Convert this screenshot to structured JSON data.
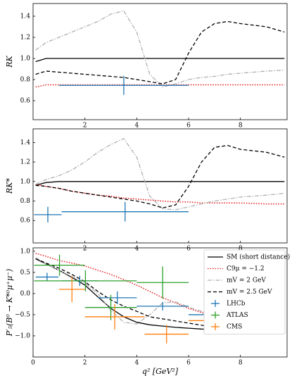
{
  "chart_data": [
    {
      "type": "line",
      "ylabel": "RK",
      "x": [
        0.1,
        0.5,
        1,
        1.5,
        2,
        2.5,
        3,
        3.5,
        4,
        4.5,
        5,
        5.5,
        6,
        6.5,
        7,
        7.5,
        8,
        9,
        9.7
      ],
      "xlim": [
        0,
        9.8
      ],
      "xticks": [
        2,
        4,
        6,
        8
      ],
      "ylim": [
        0.42,
        1.52
      ],
      "yticks": [
        0.6,
        0.8,
        {
          "value": 1,
          "label": "1.0"
        },
        1.2,
        1.4
      ],
      "series": [
        {
          "color": "#000000",
          "linestyle": "solid",
          "values": [
            0.97,
            1,
            1,
            1,
            1,
            1,
            1,
            1,
            1,
            1,
            1,
            1,
            1,
            1,
            1,
            1,
            1,
            1,
            1
          ]
        },
        {
          "color": "#e41a1c",
          "linestyle": "dotted",
          "values": [
            0.73,
            0.75,
            0.75,
            0.75,
            0.75,
            0.75,
            0.75,
            0.75,
            0.75,
            0.75,
            0.75,
            0.75,
            0.75,
            0.75,
            0.75,
            0.75,
            0.75,
            0.75,
            0.75
          ]
        },
        {
          "color": "#b0b0b0",
          "linestyle": "dashdot",
          "values": [
            1.08,
            1.15,
            1.2,
            1.25,
            1.3,
            1.35,
            1.42,
            1.45,
            1.25,
            0.85,
            0.73,
            0.76,
            0.8,
            0.82,
            0.83,
            0.85,
            0.86,
            0.88,
            0.89
          ]
        },
        {
          "color": "#000000",
          "linestyle": "dashed",
          "values": [
            0.85,
            0.88,
            0.87,
            0.86,
            0.85,
            0.84,
            0.83,
            0.82,
            0.8,
            0.78,
            0.76,
            0.8,
            1.05,
            1.25,
            1.33,
            1.35,
            1.33,
            1.3,
            1.25
          ]
        },
        {
          "color": "#1f77b4",
          "kind": "errorbar",
          "x": [
            3.5
          ],
          "xerr": [
            2.5
          ],
          "values": [
            0.745
          ],
          "yerr": [
            0.09
          ]
        }
      ]
    },
    {
      "type": "line",
      "ylabel": "RK*",
      "x": [
        0.1,
        0.5,
        1,
        1.5,
        2,
        2.5,
        3,
        3.5,
        4,
        4.5,
        5,
        5.5,
        6,
        6.5,
        7,
        7.5,
        8,
        9,
        9.7
      ],
      "xlim": [
        0,
        9.8
      ],
      "xticks": [
        2,
        4,
        6,
        8
      ],
      "ylim": [
        0.37,
        1.54
      ],
      "yticks": [
        0.6,
        0.8,
        {
          "value": 1,
          "label": "1.0"
        },
        1.2,
        1.4
      ],
      "series": [
        {
          "color": "#000000",
          "linestyle": "solid",
          "values": [
            0.96,
            0.99,
            1,
            1,
            1,
            1,
            1,
            1,
            1,
            1,
            1,
            1,
            1,
            1,
            1,
            1,
            1,
            1,
            1
          ]
        },
        {
          "color": "#e41a1c",
          "linestyle": "dotted",
          "values": [
            0.97,
            0.95,
            0.93,
            0.9,
            0.88,
            0.86,
            0.85,
            0.83,
            0.82,
            0.81,
            0.8,
            0.79,
            0.79,
            0.78,
            0.78,
            0.78,
            0.78,
            0.77,
            0.77
          ]
        },
        {
          "color": "#b0b0b0",
          "linestyle": "dashdot",
          "values": [
            0.97,
            1.02,
            1.06,
            1.12,
            1.2,
            1.3,
            1.38,
            1.44,
            1.25,
            0.85,
            0.72,
            0.71,
            0.74,
            0.77,
            0.8,
            0.82,
            0.84,
            0.86,
            0.88
          ]
        },
        {
          "color": "#000000",
          "linestyle": "dashed",
          "values": [
            0.96,
            0.95,
            0.93,
            0.9,
            0.88,
            0.86,
            0.84,
            0.82,
            0.8,
            0.77,
            0.73,
            0.76,
            0.95,
            1.2,
            1.35,
            1.37,
            1.33,
            1.3,
            1.25
          ]
        },
        {
          "color": "#1f77b4",
          "kind": "errorbar",
          "x": [
            0.57,
            3.55
          ],
          "xerr": [
            0.53,
            2.45
          ],
          "values": [
            0.66,
            0.69
          ],
          "yerr": [
            0.08,
            0.1
          ]
        }
      ]
    },
    {
      "type": "line",
      "ylabel": "P′₅(B⁰ → K*⁰μ⁺μ⁻)",
      "xlabel": "q² [GeV²]",
      "x": [
        0.1,
        0.5,
        1,
        1.5,
        2,
        2.5,
        3,
        3.5,
        4,
        4.5,
        5,
        5.5,
        6,
        6.5,
        7,
        7.5,
        8,
        9,
        9.7
      ],
      "xlim": [
        0,
        9.8
      ],
      "xticks": [
        0,
        2,
        4,
        6,
        8
      ],
      "ylim": [
        -1.5,
        1.08
      ],
      "yticks": [
        {
          "value": -1,
          "label": "−1.0"
        },
        {
          "value": -0.5,
          "label": "−0.5"
        },
        {
          "value": 0,
          "label": "0.0"
        },
        0.5,
        {
          "value": 1,
          "label": "1.0"
        }
      ],
      "legend": "upper right",
      "series": [
        {
          "name": "SM (short distance)",
          "color": "#000000",
          "linestyle": "solid",
          "values": [
            0.82,
            0.7,
            0.55,
            0.38,
            0.2,
            -0.08,
            -0.35,
            -0.55,
            -0.68,
            -0.74,
            -0.77,
            -0.8,
            -0.82,
            -0.84,
            -0.85,
            -0.85,
            -0.86,
            -0.86,
            -0.86
          ]
        },
        {
          "name": "C9μ = −1.2",
          "color": "#e41a1c",
          "linestyle": "dotted",
          "values": [
            0.95,
            0.88,
            0.78,
            0.72,
            0.65,
            0.55,
            0.45,
            0.33,
            0.2,
            0.05,
            -0.1,
            -0.22,
            -0.35,
            -0.45,
            -0.55,
            -0.6,
            -0.65,
            -0.7,
            -0.72
          ]
        },
        {
          "name": "mV = 2 GeV",
          "color": "#b0b0b0",
          "linestyle": "dashdot",
          "values": [
            0.85,
            0.7,
            0.55,
            0.4,
            0.25,
            0.0,
            -0.4,
            -0.68,
            -0.72,
            -0.5,
            -0.22,
            -0.2,
            -0.32,
            -0.42,
            -0.5,
            -0.55,
            -0.6,
            -0.63,
            -0.65
          ]
        },
        {
          "name": "mV = 2.5 GeV",
          "color": "#000000",
          "linestyle": "dashed",
          "values": [
            0.82,
            0.72,
            0.6,
            0.45,
            0.28,
            0.05,
            -0.15,
            -0.3,
            -0.42,
            -0.55,
            -0.6,
            -0.65,
            -0.7,
            -0.75,
            -0.8,
            -0.83,
            -0.85,
            -0.86,
            -0.86
          ]
        },
        {
          "name": "LHCb",
          "color": "#1f77b4",
          "kind": "errorbar",
          "x": [
            0.54,
            1.8,
            3.25,
            5,
            7
          ],
          "xerr": [
            0.44,
            0.7,
            0.75,
            1,
            1
          ],
          "values": [
            0.39,
            0.3,
            -0.1,
            -0.3,
            -0.5
          ],
          "yerr": [
            0.1,
            0.12,
            0.15,
            0.1,
            0.06
          ]
        },
        {
          "name": "ATLAS",
          "color": "#2ca02c",
          "kind": "errorbar",
          "x": [
            1.02,
            2.02,
            3,
            5
          ],
          "xerr": [
            0.98,
            1.98,
            1,
            1
          ],
          "values": [
            0.67,
            0.3,
            -0.33,
            0.26
          ],
          "yerr": [
            0.25,
            0.25,
            0.3,
            0.38
          ]
        },
        {
          "name": "CMS",
          "color": "#ff7f0e",
          "kind": "errorbar",
          "x": [
            1.5,
            3.15,
            5.15,
            7.34
          ],
          "xerr": [
            0.5,
            1.15,
            0.85,
            1.34
          ],
          "values": [
            0.1,
            -0.55,
            -0.96,
            -0.64
          ],
          "yerr": [
            0.3,
            0.3,
            0.22,
            0.2
          ]
        }
      ]
    }
  ]
}
